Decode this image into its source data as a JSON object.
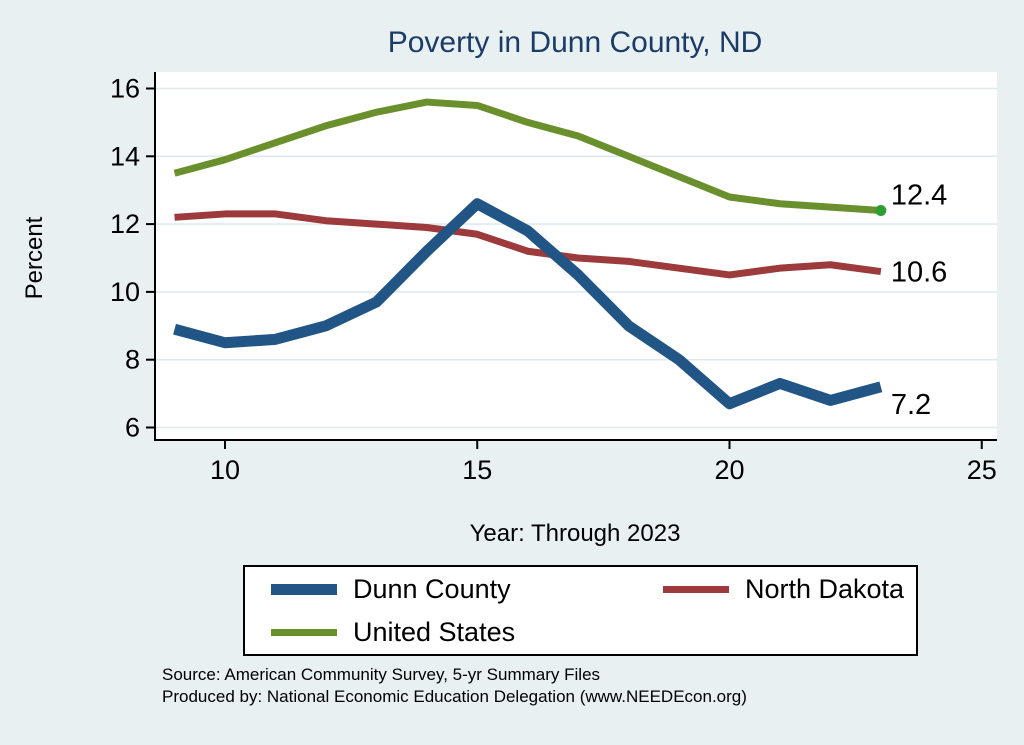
{
  "page": {
    "background": "#e9f0f2",
    "plot_background": "#ffffff",
    "gridline_color": "#dfeaf0",
    "axis_color": "#000000",
    "title_color": "#1a3c66"
  },
  "chart_data": {
    "type": "line",
    "title": "Poverty in Dunn County, ND",
    "xlabel": "Year: Through 2023",
    "ylabel": "Percent",
    "x": [
      9,
      10,
      11,
      12,
      13,
      14,
      15,
      16,
      17,
      18,
      19,
      20,
      21,
      22,
      23
    ],
    "xticks": [
      10,
      15,
      20,
      25
    ],
    "yticks": [
      6,
      8,
      10,
      12,
      14,
      16
    ],
    "xlim": [
      8.6,
      25.3
    ],
    "ylim": [
      5.6,
      16.5
    ],
    "grid": "horizontal",
    "legend_position": "bottom",
    "series": [
      {
        "name": "Dunn County",
        "color": "#215585",
        "width": 11,
        "end_label": "7.2",
        "values": [
          8.9,
          8.5,
          8.6,
          9.0,
          9.7,
          11.2,
          12.6,
          11.8,
          10.5,
          9.0,
          8.0,
          6.7,
          7.3,
          6.8,
          7.2
        ]
      },
      {
        "name": "North Dakota",
        "color": "#9c3a3c",
        "width": 7,
        "end_label": "10.6",
        "values": [
          12.2,
          12.3,
          12.3,
          12.1,
          12.0,
          11.9,
          11.7,
          11.2,
          11.0,
          10.9,
          10.7,
          10.5,
          10.7,
          10.8,
          10.6
        ]
      },
      {
        "name": "United States",
        "color": "#69902c",
        "width": 7,
        "end_label": "12.4",
        "marker_end": true,
        "marker_color": "#2f9e30",
        "values": [
          13.5,
          13.9,
          14.4,
          14.9,
          15.3,
          15.6,
          15.5,
          15.0,
          14.6,
          14.0,
          13.4,
          12.8,
          12.6,
          12.5,
          12.4
        ]
      }
    ]
  },
  "footer": {
    "source_line": "Source: American Community Survey, 5-yr Summary Files",
    "produced_line": "Produced by: National Economic Education Delegation (www.NEEDEcon.org)"
  }
}
